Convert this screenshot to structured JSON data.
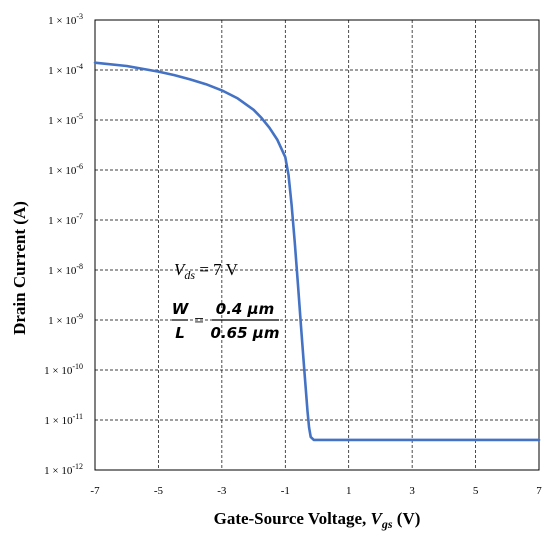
{
  "chart_data": {
    "type": "line",
    "xlabel_prefix": "Gate-Source Voltage, ",
    "xlabel_var": "V",
    "xlabel_sub": "gs",
    "xlabel_suffix": " (V)",
    "ylabel": "Drain Current (A)",
    "xlim": [
      -7,
      7
    ],
    "ylim_exp": [
      -12,
      -3
    ],
    "y_scale": "log",
    "grid": true,
    "x_ticks": [
      "-7",
      "-5",
      "-3",
      "-1",
      "1",
      "3",
      "5",
      "7"
    ],
    "y_tick_base": "1 × 10",
    "y_tick_exponents": [
      "-12",
      "-11",
      "-10",
      "-9",
      "-8",
      "-7",
      "-6",
      "-5",
      "-4",
      "-3"
    ],
    "annotation": {
      "vds_var": "V",
      "vds_sub": "ds",
      "vds_value": " = 7 V",
      "w_label": "W",
      "l_label": "L",
      "equals": "=",
      "w_value": "0.4 μm",
      "l_value": "0.65 μm"
    },
    "series": [
      {
        "color": "#4472c4",
        "x": [
          -7,
          -6,
          -5,
          -4.5,
          -4,
          -3.5,
          -3,
          -2.5,
          -2,
          -1.75,
          -1.5,
          -1.25,
          -1,
          -0.9,
          -0.8,
          -0.7,
          -0.6,
          -0.5,
          -0.4,
          -0.3,
          -0.25,
          -0.2,
          -0.1,
          0,
          7
        ],
        "y": [
          0.00014,
          0.00012,
          9.3e-05,
          7.9e-05,
          6.5e-05,
          5.2e-05,
          3.9e-05,
          2.7e-05,
          1.6e-05,
          1.1e-05,
          7e-06,
          4e-06,
          1.8e-06,
          8e-07,
          2e-07,
          3.5e-08,
          5e-09,
          7e-10,
          1e-10,
          1.5e-11,
          7e-12,
          4.6e-12,
          4e-12,
          4e-12,
          4e-12
        ]
      }
    ]
  }
}
